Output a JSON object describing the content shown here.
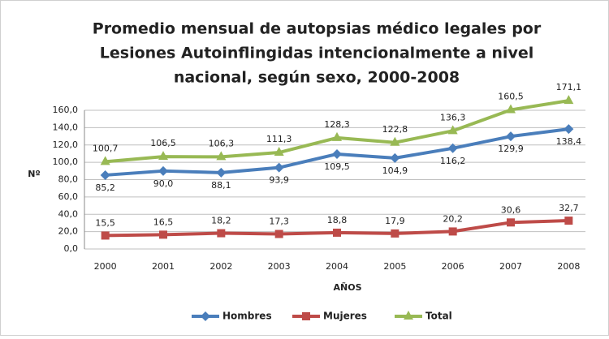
{
  "chart_data": {
    "type": "line",
    "title": [
      "Promedio mensual de autopsias médico legales  por",
      "Lesiones Autoinflingidas intencionalmente a nivel",
      "nacional, según sexo, 2000-2008"
    ],
    "xlabel": "AÑOS",
    "ylabel": "Nº",
    "categories": [
      "2000",
      "2001",
      "2002",
      "2003",
      "2004",
      "2005",
      "2006",
      "2007",
      "2008"
    ],
    "series": [
      {
        "name": "Hombres",
        "color": "#4a7ebb",
        "values": [
          85.2,
          90.0,
          88.1,
          93.9,
          109.5,
          104.9,
          116.2,
          129.9,
          138.4
        ],
        "value_labels": [
          "85,2",
          "90,0",
          "88,1",
          "93,9",
          "109,5",
          "104,9",
          "116,2",
          "129,9",
          "138,4"
        ]
      },
      {
        "name": "Mujeres",
        "color": "#be4b48",
        "values": [
          15.5,
          16.5,
          18.2,
          17.3,
          18.8,
          17.9,
          20.2,
          30.6,
          32.7
        ],
        "value_labels": [
          "15,5",
          "16,5",
          "18,2",
          "17,3",
          "18,8",
          "17,9",
          "20,2",
          "30,6",
          "32,7"
        ]
      },
      {
        "name": "Total",
        "color": "#98b954",
        "values": [
          100.7,
          106.5,
          106.3,
          111.3,
          128.3,
          122.8,
          136.3,
          160.5,
          171.1
        ],
        "value_labels": [
          "100,7",
          "106,5",
          "106,3",
          "111,3",
          "128,3",
          "122,8",
          "136,3",
          "160,5",
          "171,1"
        ]
      }
    ],
    "ylim": [
      0,
      160
    ],
    "yticks": [
      {
        "value": 0,
        "label": "0,0"
      },
      {
        "value": 20,
        "label": "20,0"
      },
      {
        "value": 40,
        "label": "40,0"
      },
      {
        "value": 60,
        "label": "60,0"
      },
      {
        "value": 80,
        "label": "80,0"
      },
      {
        "value": 100,
        "label": "100,0"
      },
      {
        "value": 120,
        "label": "120,0"
      },
      {
        "value": 140,
        "label": "140,0"
      },
      {
        "value": 160,
        "label": "160,0"
      }
    ],
    "grid": true,
    "legend": "bottom"
  }
}
